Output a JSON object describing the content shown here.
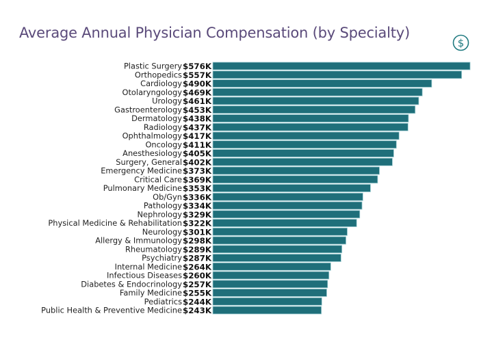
{
  "title": "Average Annual Physician Compensation (by Specialty)",
  "icon": "dollar-circle-icon",
  "colors": {
    "bar": "#1f6f7a",
    "bar_edge": "#9ecdd2",
    "title": "#5a4a7a",
    "icon": "#1f7a80"
  },
  "chart_data": {
    "type": "bar",
    "orientation": "horizontal",
    "title": "Average Annual Physician Compensation (by Specialty)",
    "xlabel": "",
    "ylabel": "",
    "unit": "$K",
    "xlim": [
      0,
      576
    ],
    "grid": false,
    "categories": [
      "Plastic Surgery",
      "Orthopedics",
      "Cardiology",
      "Otolaryngology",
      "Urology",
      "Gastroenterology",
      "Dermatology",
      "Radiology",
      "Ophthalmology",
      "Oncology",
      "Anesthesiology",
      "Surgery, General",
      "Emergency Medicine",
      "Critical Care",
      "Pulmonary Medicine",
      "Ob/Gyn",
      "Pathology",
      "Nephrology",
      "Physical Medicine & Rehabilitation",
      "Neurology",
      "Allergy & Immunology",
      "Rheumatology",
      "Psychiatry",
      "Internal Medicine",
      "Infectious Diseases",
      "Diabetes & Endocrinology",
      "Family Medicine",
      "Pediatrics",
      "Public Health & Preventive Medicine"
    ],
    "values": [
      576,
      557,
      490,
      469,
      461,
      453,
      438,
      437,
      417,
      411,
      405,
      402,
      373,
      369,
      353,
      336,
      334,
      329,
      322,
      301,
      298,
      289,
      287,
      264,
      260,
      257,
      255,
      244,
      243
    ],
    "labels": [
      "$576K",
      "$557K",
      "$490K",
      "$469K",
      "$461K",
      "$453K",
      "$438K",
      "$437K",
      "$417K",
      "$411K",
      "$405K",
      "$402K",
      "$373K",
      "$369K",
      "$353K",
      "$336K",
      "$334K",
      "$329K",
      "$322K",
      "$301K",
      "$298K",
      "$289K",
      "$287K",
      "$264K",
      "$260K",
      "$257K",
      "$255K",
      "$244K",
      "$243K"
    ]
  }
}
